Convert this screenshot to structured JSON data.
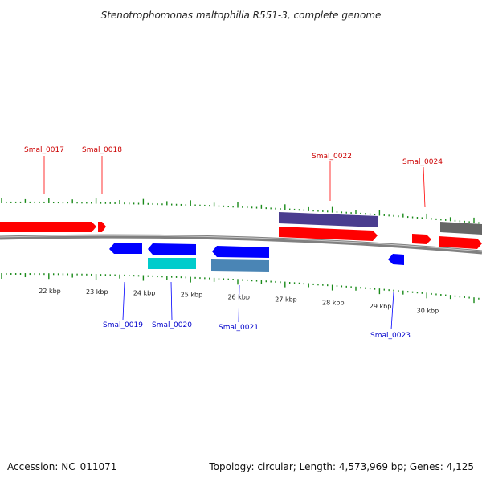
{
  "title": "Stenotrophomonas maltophilia R551-3, complete genome",
  "footer": {
    "accession": "Accession: NC_011071",
    "summary": "Topology: circular; Length: 4,573,969 bp; Genes: 4,125"
  },
  "colors": {
    "forward": "#ff0000",
    "reverse": "#0000ff",
    "backbone": "#808080",
    "ticks": "#1a8a1a",
    "cyan": "#00cccc",
    "steelblue": "#4a85b5",
    "purple": "#4a3d8f",
    "grey": "#666666"
  },
  "scale": {
    "ticks": [
      {
        "kbp": 22,
        "label": "22 kbp"
      },
      {
        "kbp": 23,
        "label": "23 kbp"
      },
      {
        "kbp": 24,
        "label": "24 kbp"
      },
      {
        "kbp": 25,
        "label": "25 kbp"
      },
      {
        "kbp": 26,
        "label": "26 kbp"
      },
      {
        "kbp": 27,
        "label": "27 kbp"
      },
      {
        "kbp": 28,
        "label": "28 kbp"
      },
      {
        "kbp": 29,
        "label": "29 kbp"
      },
      {
        "kbp": 30,
        "label": "30 kbp"
      }
    ]
  },
  "genes": [
    {
      "id": "Smal_0017",
      "strand": "+"
    },
    {
      "id": "Smal_0018",
      "strand": "+"
    },
    {
      "id": "Smal_0019",
      "strand": "-"
    },
    {
      "id": "Smal_0020",
      "strand": "-"
    },
    {
      "id": "Smal_0021",
      "strand": "-"
    },
    {
      "id": "Smal_0022",
      "strand": "+"
    },
    {
      "id": "Smal_0023",
      "strand": "-"
    },
    {
      "id": "Smal_0024",
      "strand": "+"
    }
  ]
}
